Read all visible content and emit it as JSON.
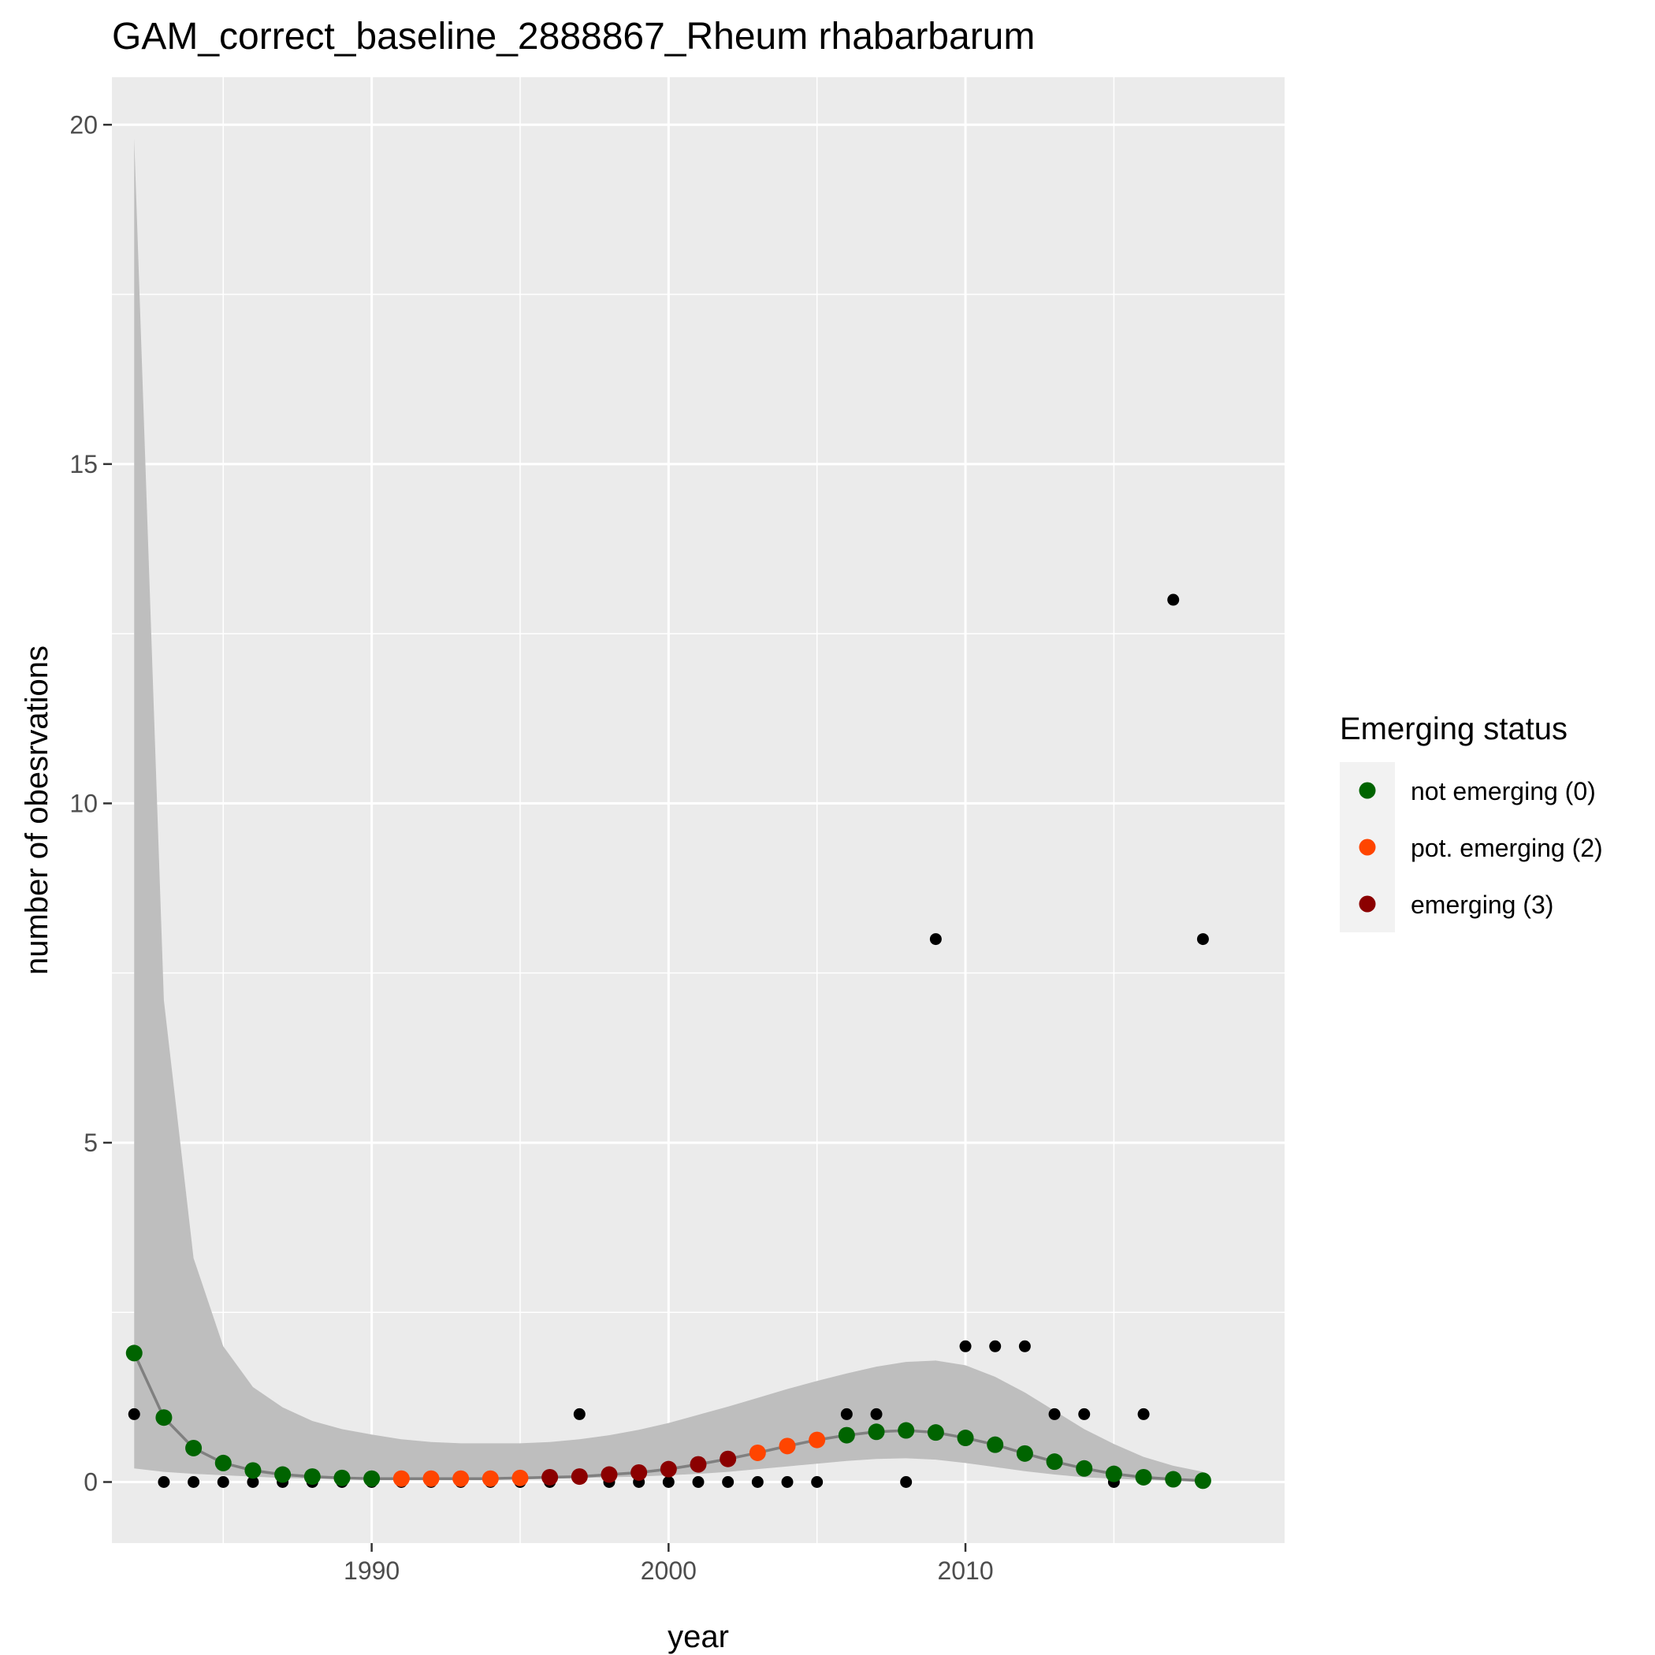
{
  "chart_data": {
    "type": "scatter",
    "title": "GAM_correct_baseline_2888867_Rheum rhabarbarum",
    "xlabel": "year",
    "ylabel": "number of obesrvations",
    "xlim": [
      1981.25,
      2020.75
    ],
    "ylim": [
      -0.9,
      20.7
    ],
    "x_ticks": [
      1990,
      2000,
      2010
    ],
    "x_tick_labels": [
      "1990",
      "2000",
      "2010"
    ],
    "y_ticks": [
      0,
      5,
      10,
      15,
      20
    ],
    "y_tick_labels": [
      "0",
      "5",
      "10",
      "15",
      "20"
    ],
    "grid": true,
    "legend": {
      "title": "Emerging status",
      "position": "right",
      "entries": [
        {
          "label": "not emerging (0)",
          "color": "#006400"
        },
        {
          "label": "pot. emerging (2)",
          "color": "#FF4500"
        },
        {
          "label": "emerging (3)",
          "color": "#8B0000"
        }
      ]
    },
    "colors": {
      "panel": "#EBEBEB",
      "grid": "#FFFFFF",
      "ribbon": "#BEBEBE",
      "fit_line": "#808080",
      "observed": "#000000"
    },
    "observed": {
      "x": [
        1982,
        1983,
        1984,
        1985,
        1986,
        1987,
        1988,
        1989,
        1990,
        1991,
        1992,
        1993,
        1994,
        1995,
        1996,
        1997,
        1998,
        1999,
        2000,
        2001,
        2002,
        2003,
        2004,
        2005,
        2006,
        2007,
        2008,
        2009,
        2010,
        2011,
        2012,
        2013,
        2014,
        2015,
        2016,
        2017,
        2018
      ],
      "y": [
        1,
        0,
        0,
        0,
        0,
        0,
        0,
        0,
        0,
        0,
        0,
        0,
        0,
        0,
        0,
        1,
        0,
        0,
        0,
        0,
        0,
        0,
        0,
        0,
        1,
        1,
        0,
        8,
        2,
        2,
        2,
        1,
        1,
        0,
        1,
        13,
        8
      ]
    },
    "fit": {
      "x": [
        1982,
        1983,
        1984,
        1985,
        1986,
        1987,
        1988,
        1989,
        1990,
        1991,
        1992,
        1993,
        1994,
        1995,
        1996,
        1997,
        1998,
        1999,
        2000,
        2001,
        2002,
        2003,
        2004,
        2005,
        2006,
        2007,
        2008,
        2009,
        2010,
        2011,
        2012,
        2013,
        2014,
        2015,
        2016,
        2017,
        2018
      ],
      "y": [
        1.9,
        0.95,
        0.5,
        0.28,
        0.17,
        0.11,
        0.08,
        0.06,
        0.05,
        0.05,
        0.05,
        0.05,
        0.05,
        0.06,
        0.07,
        0.08,
        0.11,
        0.14,
        0.19,
        0.26,
        0.34,
        0.43,
        0.53,
        0.62,
        0.69,
        0.74,
        0.76,
        0.73,
        0.65,
        0.55,
        0.42,
        0.3,
        0.2,
        0.12,
        0.07,
        0.04,
        0.02
      ],
      "status": [
        0,
        0,
        0,
        0,
        0,
        0,
        0,
        0,
        0,
        2,
        2,
        2,
        2,
        2,
        3,
        3,
        3,
        3,
        3,
        3,
        3,
        2,
        2,
        2,
        0,
        0,
        0,
        0,
        0,
        0,
        0,
        0,
        0,
        0,
        0,
        0,
        0
      ],
      "lower": [
        0.2,
        0.15,
        0.12,
        0.1,
        0.08,
        0.06,
        0.05,
        0.04,
        0.04,
        0.04,
        0.04,
        0.04,
        0.04,
        0.04,
        0.05,
        0.06,
        0.07,
        0.08,
        0.1,
        0.12,
        0.15,
        0.19,
        0.23,
        0.27,
        0.31,
        0.34,
        0.35,
        0.33,
        0.28,
        0.22,
        0.16,
        0.11,
        0.07,
        0.05,
        0.03,
        0.02,
        0.01
      ],
      "upper": [
        19.8,
        7.1,
        3.3,
        2.0,
        1.4,
        1.1,
        0.9,
        0.78,
        0.7,
        0.63,
        0.59,
        0.57,
        0.57,
        0.57,
        0.59,
        0.63,
        0.69,
        0.77,
        0.87,
        0.99,
        1.11,
        1.24,
        1.37,
        1.49,
        1.6,
        1.7,
        1.77,
        1.79,
        1.72,
        1.55,
        1.32,
        1.05,
        0.78,
        0.56,
        0.37,
        0.24,
        0.15
      ]
    }
  }
}
